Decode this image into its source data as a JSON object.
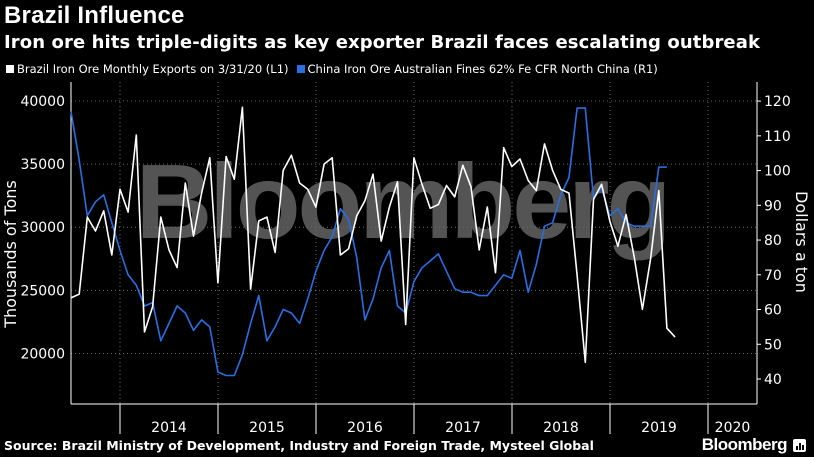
{
  "header": {
    "title": "Brazil Influence",
    "subtitle": "Iron ore hits triple-digits as key exporter Brazil faces escalating outbreak"
  },
  "footer": {
    "source": "Source: Brazil Ministry of Development, Industry and Foreign Trade, Mysteel Global",
    "brand": "Bloomberg"
  },
  "chart_data": {
    "type": "line",
    "title": "Brazil Influence",
    "watermark": "Bloomberg",
    "legend_position": "top-left",
    "grid": true,
    "x_range": [
      2013.5,
      2020.5
    ],
    "x_tick_labels": [
      "2014",
      "2015",
      "2016",
      "2017",
      "2018",
      "2019",
      "2020"
    ],
    "y_left": {
      "label": "Thousands of Tons",
      "range": [
        16000,
        41500
      ],
      "ticks": [
        "20000",
        "25000",
        "30000",
        "35000",
        "40000"
      ]
    },
    "y_right": {
      "label": "Dollars a ton",
      "range": [
        32.8,
        125.5
      ],
      "ticks": [
        "40",
        "50",
        "60",
        "70",
        "80",
        "90",
        "100",
        "110",
        "120"
      ]
    },
    "series": [
      {
        "name": "Brazil Iron Ore Monthly Exports  on 3/31/20 (L1)",
        "axis": "left",
        "color": "#ffffff",
        "x_start": 2013.5,
        "x_step": 0.0833,
        "values": [
          24400,
          24700,
          30800,
          29700,
          31300,
          27800,
          33000,
          31200,
          37300,
          21700,
          23700,
          30800,
          28200,
          26800,
          33500,
          29300,
          32700,
          35500,
          25600,
          35600,
          33800,
          39500,
          25100,
          30500,
          30800,
          28000,
          34500,
          35700,
          33500,
          33000,
          31600,
          35000,
          35500,
          27800,
          28300,
          30900,
          32100,
          34200,
          28900,
          31600,
          33600,
          22300,
          35500,
          33400,
          31500,
          31800,
          33300,
          32400,
          34900,
          33200,
          28200,
          31600,
          26400,
          36300,
          34800,
          35400,
          33700,
          32900,
          36600,
          34500,
          33000,
          32700,
          26200,
          19300,
          32200,
          33400,
          30500,
          28500,
          31000,
          27600,
          23500,
          27500,
          32900,
          22000,
          21300
        ]
      },
      {
        "name": "China Iron Ore Australian Fines 62% Fe CFR North China  (R1)",
        "axis": "right",
        "color": "#2a6fe0",
        "x_start": 2013.5,
        "x_step": 0.0833,
        "values": [
          117,
          103,
          87,
          91,
          93,
          85,
          77,
          70,
          67,
          61,
          62,
          51,
          56,
          61,
          59,
          54,
          57,
          55,
          42,
          41,
          41,
          47,
          56,
          64,
          51,
          55,
          60,
          59,
          56,
          63,
          71,
          77,
          81,
          89,
          86,
          75,
          57,
          63,
          72,
          77,
          61,
          59,
          68,
          72,
          74,
          76,
          71,
          66,
          65,
          65,
          64,
          64,
          67,
          70,
          69,
          77,
          65,
          73,
          84,
          85,
          93,
          98,
          118,
          118,
          92,
          95,
          87,
          89,
          85,
          84,
          84,
          84,
          101,
          101
        ]
      }
    ]
  }
}
